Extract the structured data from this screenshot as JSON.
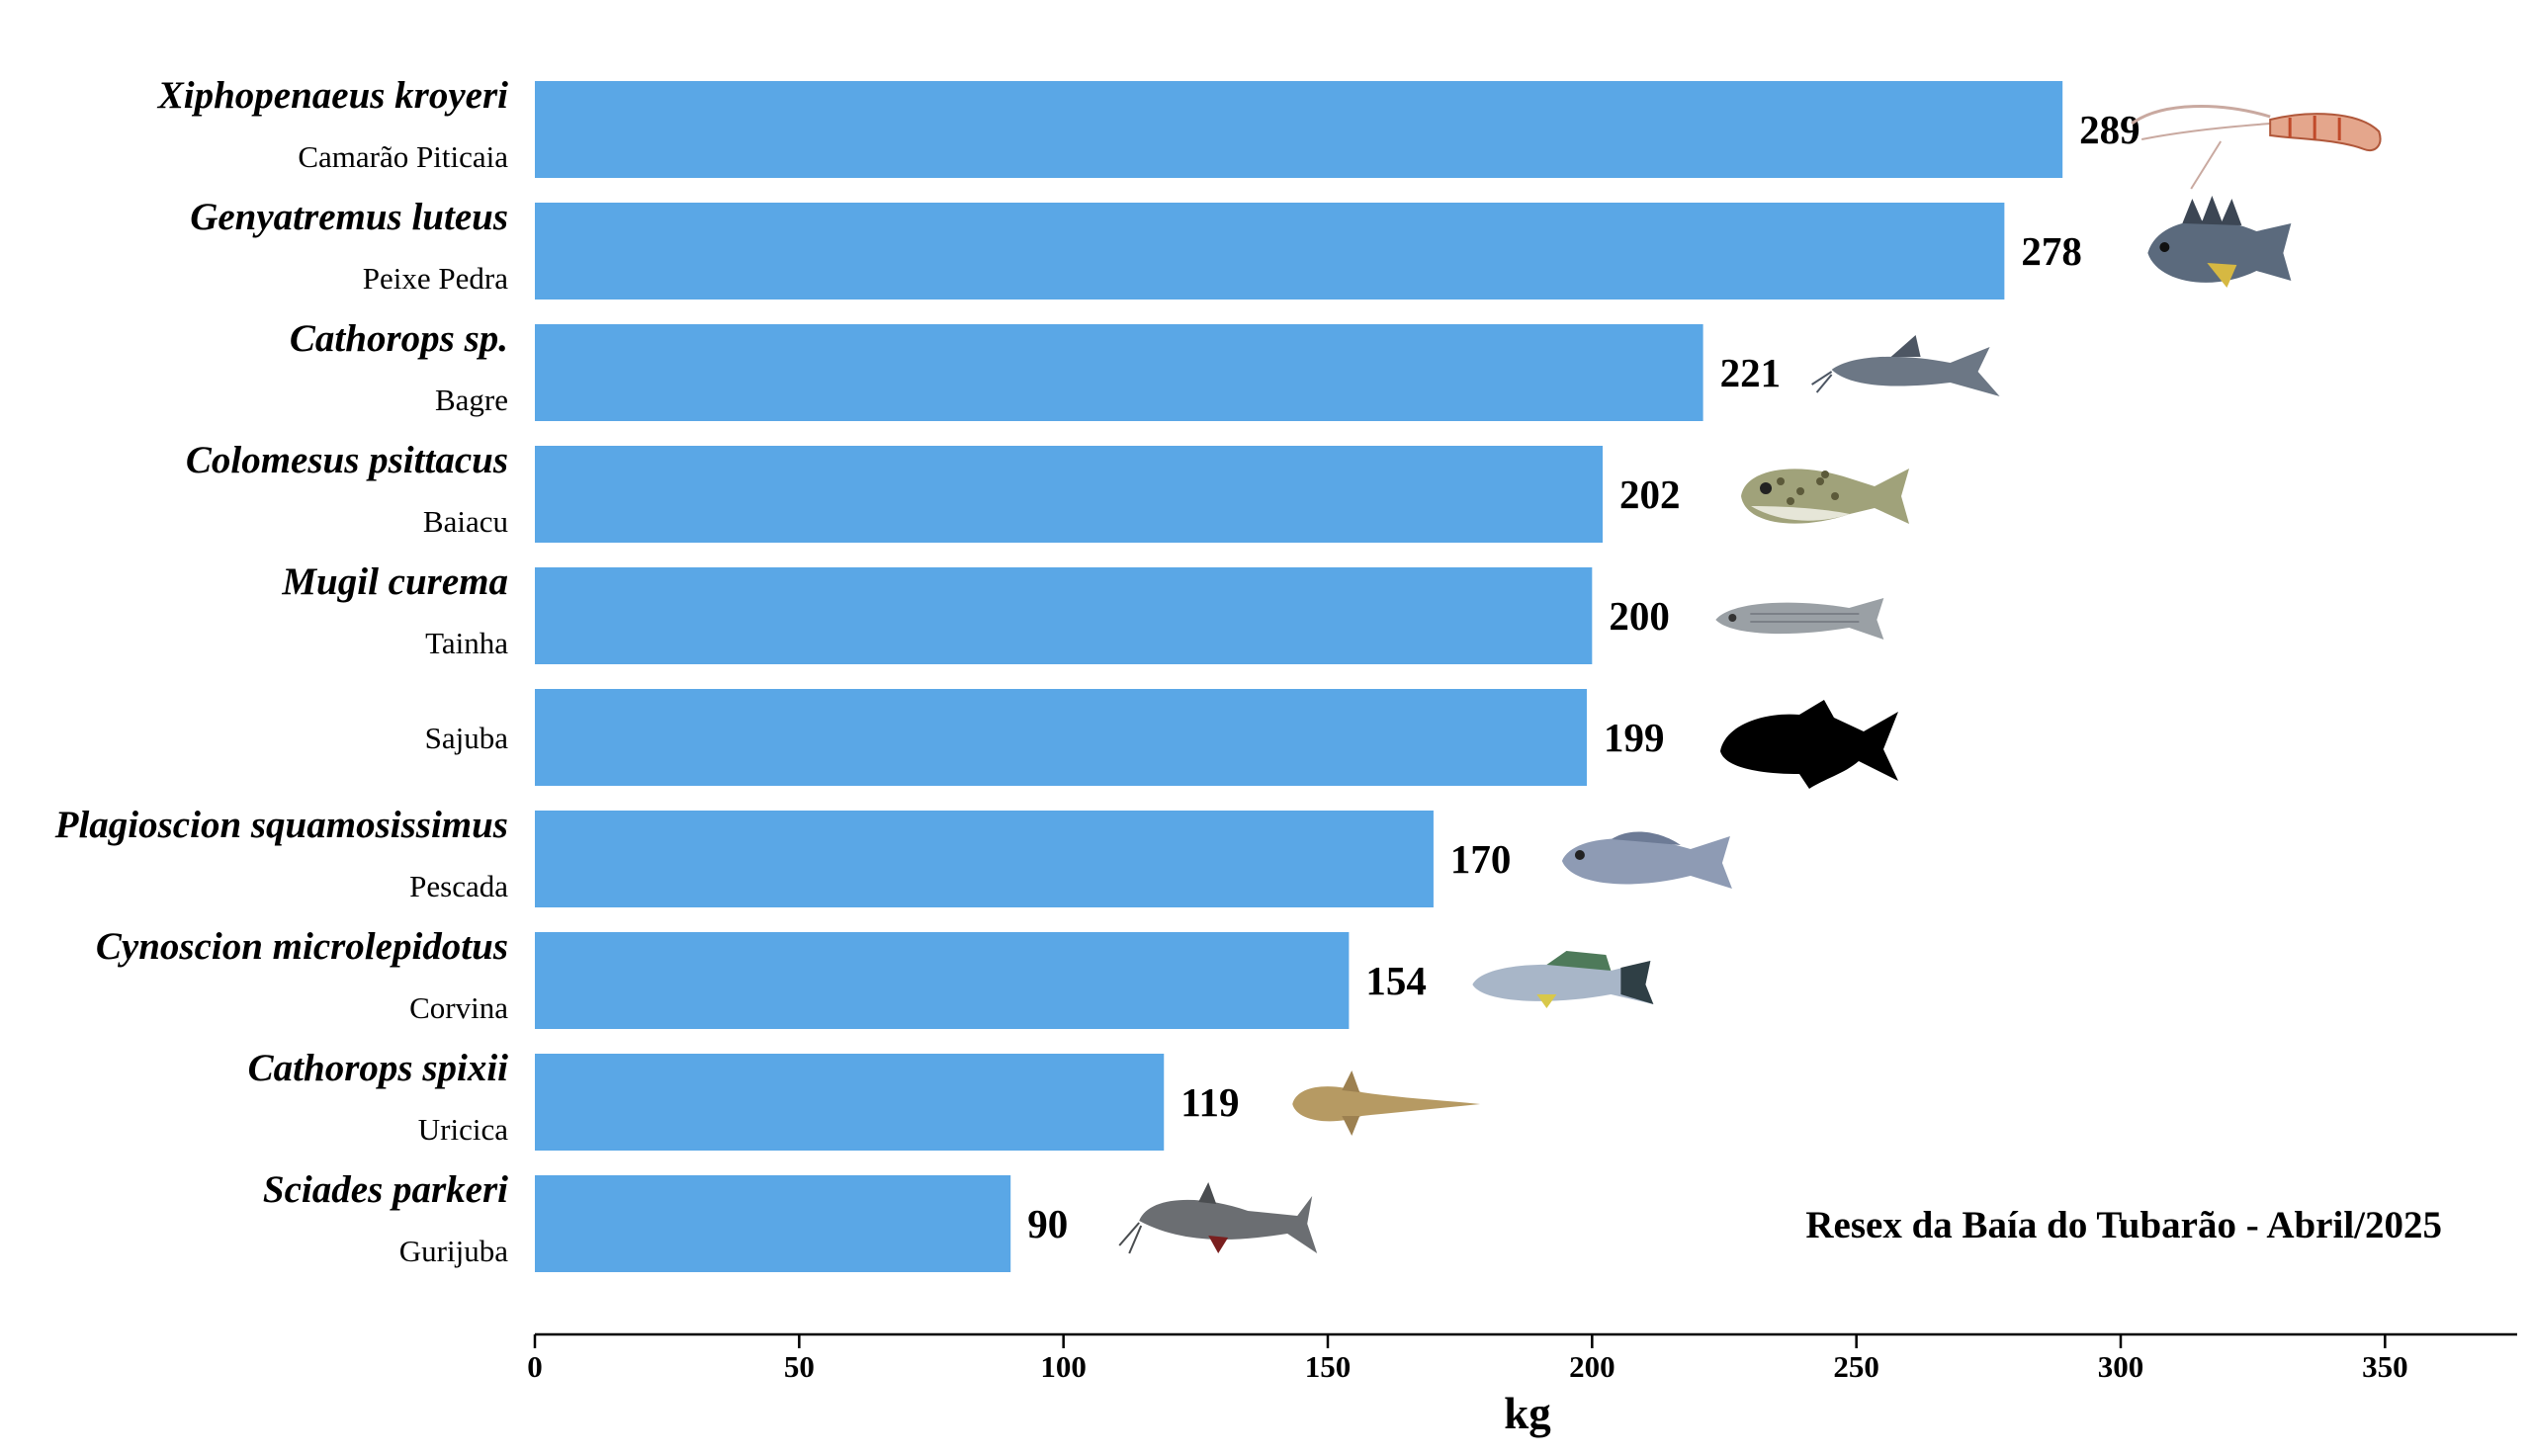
{
  "chart_data": {
    "type": "bar",
    "orientation": "horizontal",
    "xlabel": "kg",
    "xlim": [
      0,
      375
    ],
    "xticks": [
      0,
      50,
      100,
      150,
      200,
      250,
      300,
      350
    ],
    "annotation": "Resex da Baía do Tubarão - Abril/2025",
    "bar_color": "#5aa7e6",
    "categories": [
      {
        "scientific": "Xiphopenaeus kroyeri",
        "common": "Camarão Piticaia",
        "value": 289,
        "icon": "shrimp-icon"
      },
      {
        "scientific": "Genyatremus luteus",
        "common": "Peixe Pedra",
        "value": 278,
        "icon": "stone-fish-icon"
      },
      {
        "scientific": "Cathorops sp.",
        "common": "Bagre",
        "value": 221,
        "icon": "catfish-icon"
      },
      {
        "scientific": "Colomesus psittacus",
        "common": "Baiacu",
        "value": 202,
        "icon": "pufferfish-icon"
      },
      {
        "scientific": "Mugil curema",
        "common": "Tainha",
        "value": 200,
        "icon": "mullet-icon"
      },
      {
        "scientific": "",
        "common": "Sajuba",
        "value": 199,
        "icon": "fish-silhouette-icon"
      },
      {
        "scientific": "Plagioscion squamosissimus",
        "common": "Pescada",
        "value": 170,
        "icon": "croaker-icon"
      },
      {
        "scientific": "Cynoscion microlepidotus",
        "common": "Corvina",
        "value": 154,
        "icon": "weakfish-icon"
      },
      {
        "scientific": "Cathorops spixii",
        "common": "Uricica",
        "value": 119,
        "icon": "small-catfish-icon"
      },
      {
        "scientific": "Sciades parkeri",
        "common": "Gurijuba",
        "value": 90,
        "icon": "gillbacker-catfish-icon"
      }
    ]
  }
}
